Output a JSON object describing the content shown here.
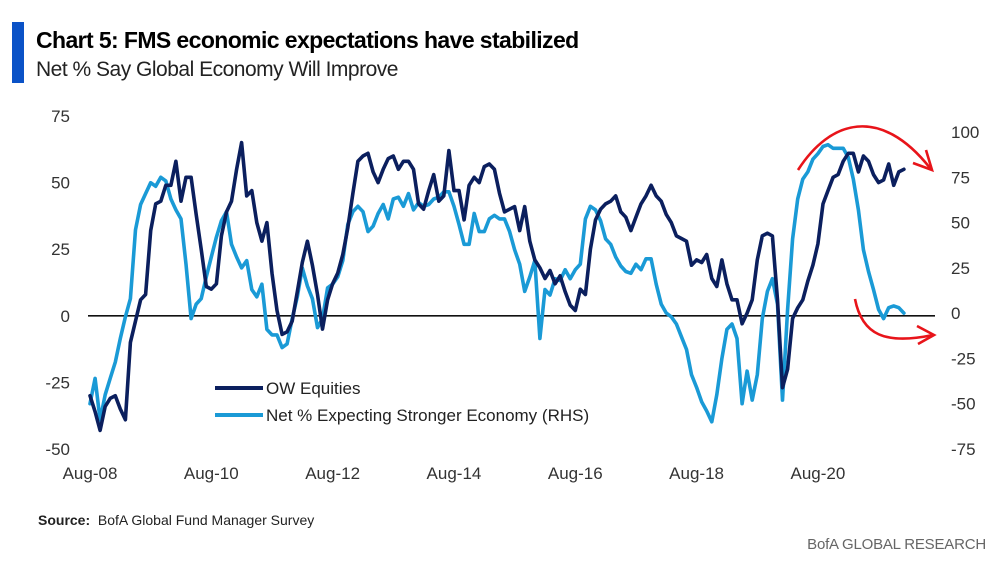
{
  "header": {
    "title": "Chart 5: FMS economic expectations have stabilized",
    "subtitle": "Net % Say Global Economy Will Improve",
    "accent_color": "#0a52c7"
  },
  "footer": {
    "source_label": "Source:",
    "source_text": "BofA Global Fund Manager Survey",
    "brand": "BofA GLOBAL RESEARCH"
  },
  "chart_data": {
    "type": "line",
    "title": "Chart 5: FMS economic expectations have stabilized",
    "subtitle": "Net % Say Global Economy Will Improve",
    "xlabel": "",
    "ylabel": "",
    "x_start": "Aug-08",
    "x_frequency": "monthly",
    "x_ticks": [
      "Aug-08",
      "Aug-10",
      "Aug-12",
      "Aug-14",
      "Aug-16",
      "Aug-18",
      "Aug-20"
    ],
    "x_tick_month_offsets": [
      0,
      24,
      48,
      72,
      96,
      120,
      144
    ],
    "ylim_left": [
      -50,
      75
    ],
    "yticks_left": [
      75,
      50,
      25,
      0,
      -25,
      -50
    ],
    "ylim_right": [
      -75,
      100
    ],
    "yticks_right": [
      100,
      75,
      50,
      25,
      0,
      -25,
      -50,
      -75
    ],
    "zero_line": true,
    "grid": false,
    "legend_position": "bottom-left",
    "series": [
      {
        "name": "OW Equities",
        "axis": "left",
        "color": "#0b1f5e",
        "values": [
          -30,
          -36,
          -43,
          -34,
          -31,
          -30,
          -35,
          -39,
          -10,
          -2,
          6,
          8,
          32,
          42,
          43,
          49,
          49,
          58,
          43,
          52,
          52,
          38,
          25,
          11,
          10,
          12,
          30,
          39,
          43,
          55,
          65,
          45,
          47,
          35,
          28,
          35,
          16,
          2,
          -7,
          -6,
          -2,
          9,
          20,
          28,
          19,
          8,
          -5,
          6,
          12,
          16,
          23,
          33,
          46,
          58,
          60,
          61,
          54,
          50,
          55,
          59,
          60,
          55,
          58,
          58,
          55,
          42,
          40,
          47,
          53,
          43,
          45,
          62,
          47,
          47,
          36,
          49,
          52,
          50,
          56,
          57,
          55,
          46,
          39,
          40,
          41,
          32,
          41,
          28,
          21,
          18,
          14,
          17,
          12,
          15,
          9,
          4,
          2,
          10,
          8,
          25,
          36,
          40,
          42,
          43,
          45,
          39,
          37,
          32,
          37,
          42,
          45,
          49,
          45,
          43,
          38,
          35,
          30,
          29,
          28,
          19,
          21,
          20,
          23,
          14,
          11,
          21,
          12,
          6,
          6,
          -3,
          1,
          6,
          21,
          30,
          31,
          30,
          6,
          -27,
          -20,
          -1,
          3,
          6,
          13,
          19,
          27,
          42,
          47,
          52,
          53,
          58,
          61,
          61,
          54,
          60,
          58,
          53,
          50,
          51,
          57,
          49,
          54,
          55
        ]
      },
      {
        "name": "Net % Expecting Stronger Economy (RHS)",
        "axis": "right",
        "color": "#1a9ad6",
        "values": [
          -50,
          -36,
          -59,
          -45,
          -36,
          -27,
          -14,
          -2,
          8,
          46,
          60,
          66,
          72,
          70,
          75,
          73,
          63,
          57,
          52,
          27,
          -3,
          5,
          8,
          20,
          31,
          42,
          51,
          56,
          38,
          31,
          25,
          29,
          13,
          9,
          16,
          -9,
          -12,
          -12,
          -19,
          -17,
          -3,
          9,
          25,
          15,
          8,
          -8,
          -3,
          14,
          16,
          20,
          29,
          49,
          56,
          59,
          56,
          45,
          48,
          55,
          60,
          52,
          63,
          64,
          59,
          66,
          57,
          61,
          59,
          60,
          63,
          64,
          67,
          67,
          59,
          49,
          38,
          38,
          55,
          45,
          45,
          52,
          54,
          52,
          52,
          45,
          35,
          27,
          12,
          20,
          29,
          -14,
          13,
          10,
          19,
          18,
          24,
          19,
          24,
          27,
          52,
          59,
          57,
          51,
          41,
          38,
          31,
          26,
          23,
          22,
          27,
          24,
          30,
          30,
          16,
          5,
          0,
          -2,
          -6,
          -13,
          -20,
          -34,
          -41,
          -49,
          -54,
          -60,
          -45,
          -25,
          -9,
          -6,
          -14,
          -50,
          -32,
          -48,
          -34,
          -3,
          12,
          19,
          5,
          -48,
          2,
          41,
          63,
          74,
          78,
          85,
          88,
          92,
          93,
          91,
          91,
          91,
          86,
          74,
          57,
          35,
          23,
          13,
          2,
          -3,
          3,
          4,
          3,
          0
        ]
      }
    ],
    "annotations": [
      {
        "type": "arrow",
        "shape": "arc-down",
        "color": "#e8141a",
        "note": "peak rolling over"
      },
      {
        "type": "arrow",
        "shape": "curve-right",
        "color": "#e8141a",
        "note": "stabilizing near zero"
      }
    ]
  }
}
